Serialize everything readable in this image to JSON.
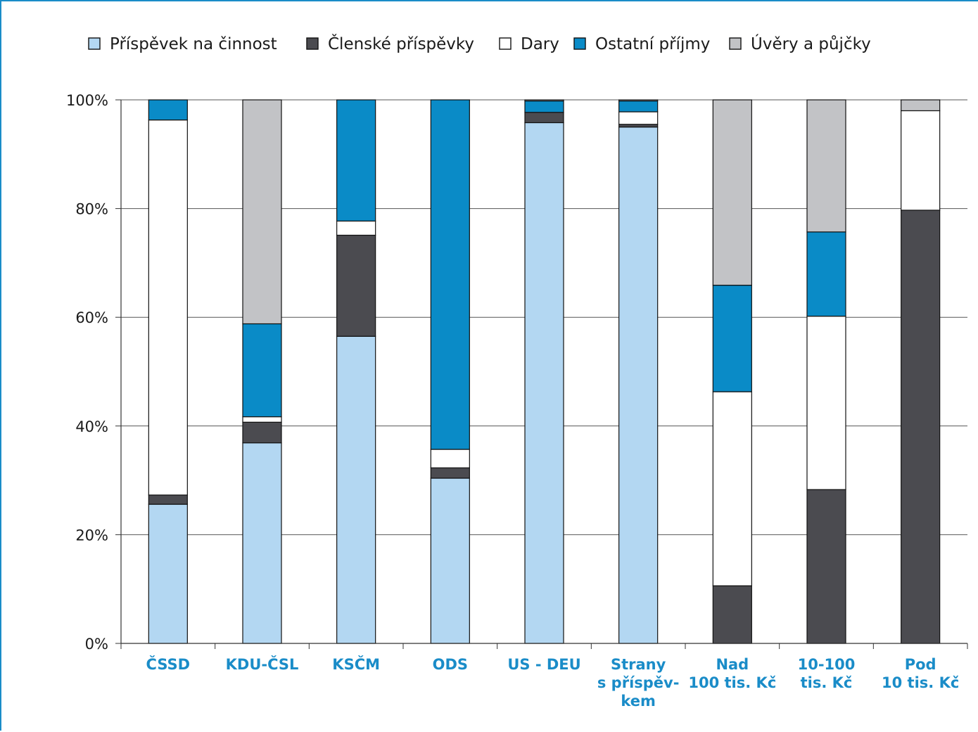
{
  "chart_data": {
    "type": "bar",
    "stacked": true,
    "percent": true,
    "title": "",
    "xlabel": "",
    "ylabel": "",
    "ylim": [
      0,
      100
    ],
    "y_ticks": [
      "0%",
      "20%",
      "40%",
      "60%",
      "80%",
      "100%"
    ],
    "grid": true,
    "legend_position": "top",
    "categories": [
      [
        "ČSSD"
      ],
      [
        "KDU-ČSL"
      ],
      [
        "KSČM"
      ],
      [
        "ODS"
      ],
      [
        "US - DEU"
      ],
      [
        "Strany",
        "s příspěv-",
        "kem"
      ],
      [
        "Nad",
        "100 tis. Kč"
      ],
      [
        "10-100",
        "tis. Kč"
      ],
      [
        "Pod",
        "10 tis. Kč"
      ]
    ],
    "series": [
      {
        "name": "Příspěvek na činnost",
        "color": "#b3d7f2",
        "values": [
          25.6,
          36.9,
          56.5,
          30.4,
          95.8,
          95.0,
          0,
          0,
          0
        ]
      },
      {
        "name": "Členské příspěvky",
        "color": "#4b4b50",
        "values": [
          1.7,
          3.8,
          18.6,
          1.9,
          1.9,
          0.5,
          10.6,
          28.3,
          79.7
        ]
      },
      {
        "name": "Dary",
        "color": "#ffffff",
        "values": [
          69.0,
          1.0,
          2.6,
          3.4,
          0,
          2.3,
          35.7,
          31.9,
          18.3
        ]
      },
      {
        "name": "Ostatní příjmy",
        "color": "#0a8bc7",
        "values": [
          3.7,
          17.1,
          22.3,
          64.3,
          2.1,
          2.0,
          19.6,
          15.5,
          0
        ]
      },
      {
        "name": "Úvěry a půjčky",
        "color": "#c2c3c6",
        "values": [
          0,
          41.2,
          0,
          0,
          0.2,
          0.2,
          34.1,
          24.3,
          2.0
        ]
      }
    ]
  }
}
